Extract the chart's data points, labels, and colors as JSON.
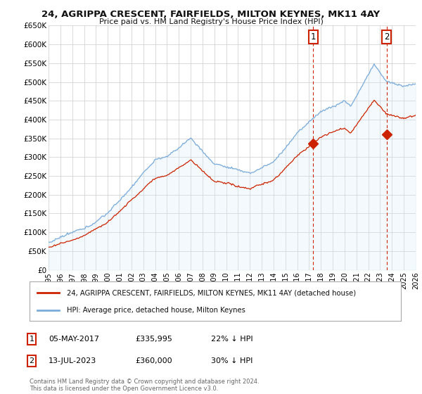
{
  "title": "24, AGRIPPA CRESCENT, FAIRFIELDS, MILTON KEYNES, MK11 4AY",
  "subtitle": "Price paid vs. HM Land Registry's House Price Index (HPI)",
  "ylim": [
    0,
    650000
  ],
  "yticks": [
    0,
    50000,
    100000,
    150000,
    200000,
    250000,
    300000,
    350000,
    400000,
    450000,
    500000,
    550000,
    600000,
    650000
  ],
  "ytick_labels": [
    "£0",
    "£50K",
    "£100K",
    "£150K",
    "£200K",
    "£250K",
    "£300K",
    "£350K",
    "£400K",
    "£450K",
    "£500K",
    "£550K",
    "£600K",
    "£650K"
  ],
  "xmin_year": 1995,
  "xmax_year": 2026,
  "xtick_years": [
    1995,
    1996,
    1997,
    1998,
    1999,
    2000,
    2001,
    2002,
    2003,
    2004,
    2005,
    2006,
    2007,
    2008,
    2009,
    2010,
    2011,
    2012,
    2013,
    2014,
    2015,
    2016,
    2017,
    2018,
    2019,
    2020,
    2021,
    2022,
    2023,
    2024,
    2025,
    2026
  ],
  "hpi_color": "#7aabdb",
  "hpi_fill_color": "#d0e8f5",
  "price_color": "#cc2200",
  "sale1_date": 2017.35,
  "sale1_price": 335995,
  "sale1_label": "1",
  "sale1_info": "05-MAY-2017",
  "sale1_price_str": "£335,995",
  "sale1_pct": "22% ↓ HPI",
  "sale2_date": 2023.54,
  "sale2_price": 360000,
  "sale2_label": "2",
  "sale2_info": "13-JUL-2023",
  "sale2_price_str": "£360,000",
  "sale2_pct": "30% ↓ HPI",
  "legend_line1": "24, AGRIPPA CRESCENT, FAIRFIELDS, MILTON KEYNES, MK11 4AY (detached house)",
  "legend_line2": "HPI: Average price, detached house, Milton Keynes",
  "footnote": "Contains HM Land Registry data © Crown copyright and database right 2024.\nThis data is licensed under the Open Government Licence v3.0.",
  "background_color": "#ffffff",
  "grid_color": "#cccccc"
}
